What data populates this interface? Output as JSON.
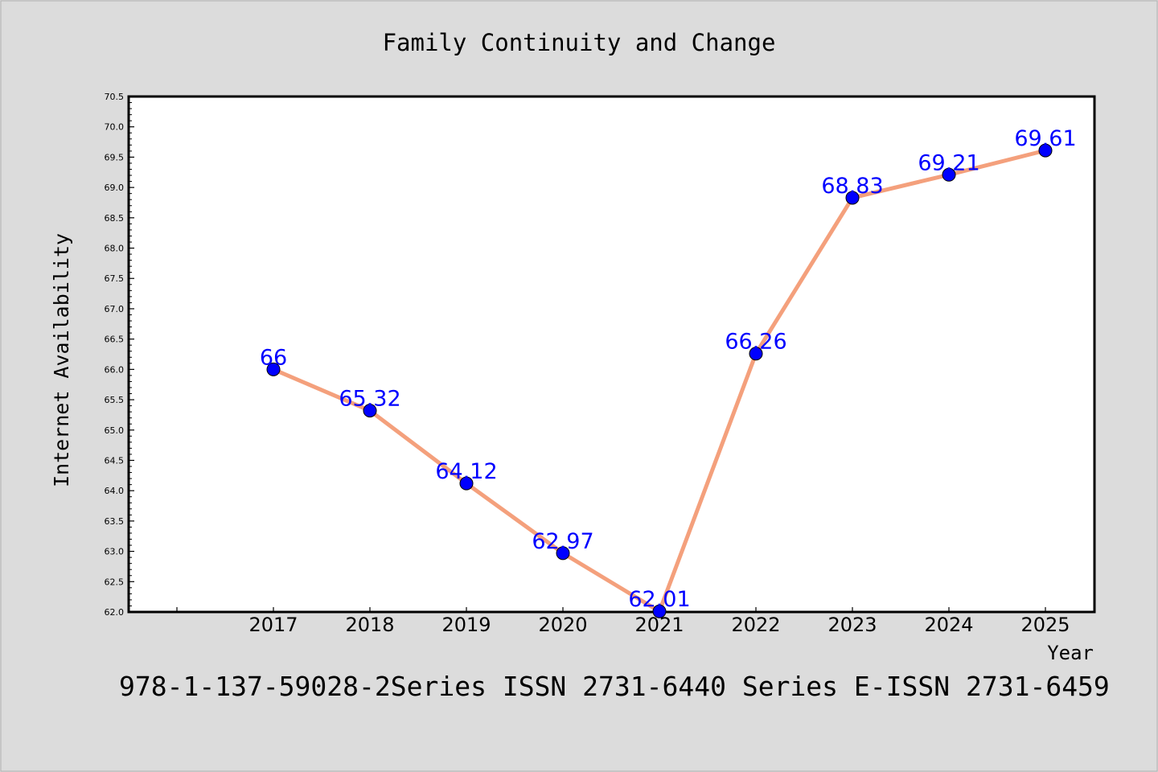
{
  "chart_data": {
    "type": "line",
    "title": "Family Continuity and Change",
    "xlabel": "Year",
    "ylabel": "Internet Availability",
    "x": [
      2017,
      2018,
      2019,
      2020,
      2021,
      2022,
      2023,
      2024,
      2025
    ],
    "categories": [
      "2017",
      "2018",
      "2019",
      "2020",
      "2021",
      "2022",
      "2023",
      "2024",
      "2025"
    ],
    "series": [
      {
        "values": [
          66,
          65.32,
          64.12,
          62.97,
          62.01,
          66.26,
          68.83,
          69.21,
          69.61
        ],
        "labels": [
          "66",
          "65.32",
          "64.12",
          "62.97",
          "62.01",
          "66.26",
          "68.83",
          "69.21",
          "69.61"
        ],
        "color": "#f4a07c",
        "marker_color": "#0000ff"
      }
    ],
    "ylim": [
      62.0,
      70.5
    ],
    "yticks": [
      "62.0",
      "62.5",
      "63.0",
      "63.5",
      "64.0",
      "64.5",
      "65.0",
      "65.5",
      "66.0",
      "66.5",
      "67.0",
      "67.5",
      "68.0",
      "68.5",
      "69.0",
      "69.5",
      "70.0",
      "70.5"
    ],
    "grid": false,
    "legend": "none",
    "footnote": "978-1-137-59028-2Series ISSN 2731-6440 Series E-ISSN 2731-6459",
    "colors": {
      "background": "#dcdcdc",
      "plot_background": "#ffffff",
      "line": "#f4a07c",
      "marker": "#0000ff",
      "data_label": "#0000ff"
    }
  }
}
